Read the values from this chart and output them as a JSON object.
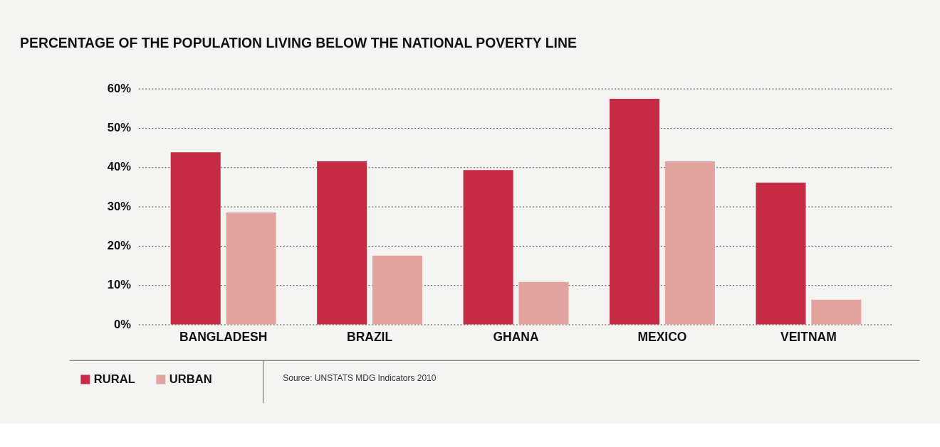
{
  "chart_data": {
    "type": "bar",
    "title": "PERCENTAGE OF THE POPULATION LIVING BELOW THE NATIONAL POVERTY LINE",
    "categories": [
      "BANGLADESH",
      "BRAZIL",
      "GHANA",
      "MEXICO",
      "VEITNAM"
    ],
    "series": [
      {
        "name": "RURAL",
        "color": "#c52b45",
        "values": [
          43.8,
          41.5,
          39.3,
          57.4,
          36.1
        ]
      },
      {
        "name": "URBAN",
        "color": "#e2a49e",
        "values": [
          28.5,
          17.5,
          10.8,
          41.5,
          6.3
        ]
      }
    ],
    "ylim": [
      0,
      60
    ],
    "yticks": [
      {
        "value": 0,
        "label": "0%"
      },
      {
        "value": 10,
        "label": "10%"
      },
      {
        "value": 20,
        "label": "20%"
      },
      {
        "value": 30,
        "label": "30%"
      },
      {
        "value": 40,
        "label": "40%"
      },
      {
        "value": 50,
        "label": "50%"
      },
      {
        "value": 60,
        "label": "60%"
      }
    ],
    "grid": "y",
    "legend": "bottom left",
    "annotations": [
      "Source: UNSTATS MDG Indicators 2010"
    ]
  }
}
